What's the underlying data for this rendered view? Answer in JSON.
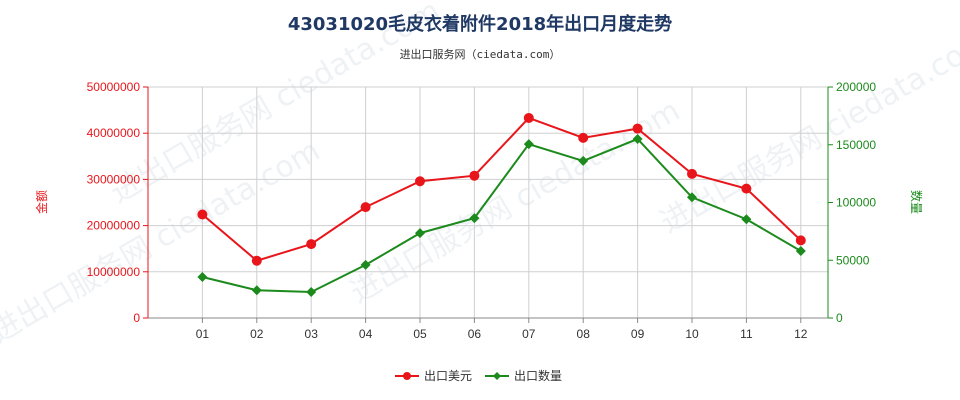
{
  "chart_data": {
    "type": "line",
    "title": "43031020毛皮衣着附件2018年出口月度走势",
    "subtitle": "进出口服务网（ciedata.com）",
    "categories": [
      "01",
      "02",
      "03",
      "04",
      "05",
      "06",
      "07",
      "08",
      "09",
      "10",
      "11",
      "12"
    ],
    "left_axis": {
      "label": "金额",
      "range": [
        0,
        50000000
      ],
      "ticks": [
        "0",
        "10000000",
        "20000000",
        "30000000",
        "40000000",
        "50000000"
      ]
    },
    "right_axis": {
      "label": "数量",
      "range": [
        0,
        200000
      ],
      "ticks": [
        "0",
        "50000",
        "100000",
        "150000",
        "200000"
      ]
    },
    "series": [
      {
        "name": "出口美元",
        "axis": "left",
        "color": "#e8161b",
        "values": [
          22400000,
          12400000,
          16000000,
          24000000,
          29600000,
          30800000,
          43300000,
          39000000,
          41000000,
          31200000,
          28000000,
          16800000
        ]
      },
      {
        "name": "出口数量",
        "axis": "right",
        "color": "#1c8a1c",
        "values": [
          35500,
          24000,
          22500,
          46000,
          73500,
          86500,
          150500,
          136000,
          155000,
          104500,
          85500,
          58000
        ]
      }
    ],
    "grid": true,
    "legend_position": "bottom-center",
    "watermark": "进出口服务网 ciedata.com"
  }
}
